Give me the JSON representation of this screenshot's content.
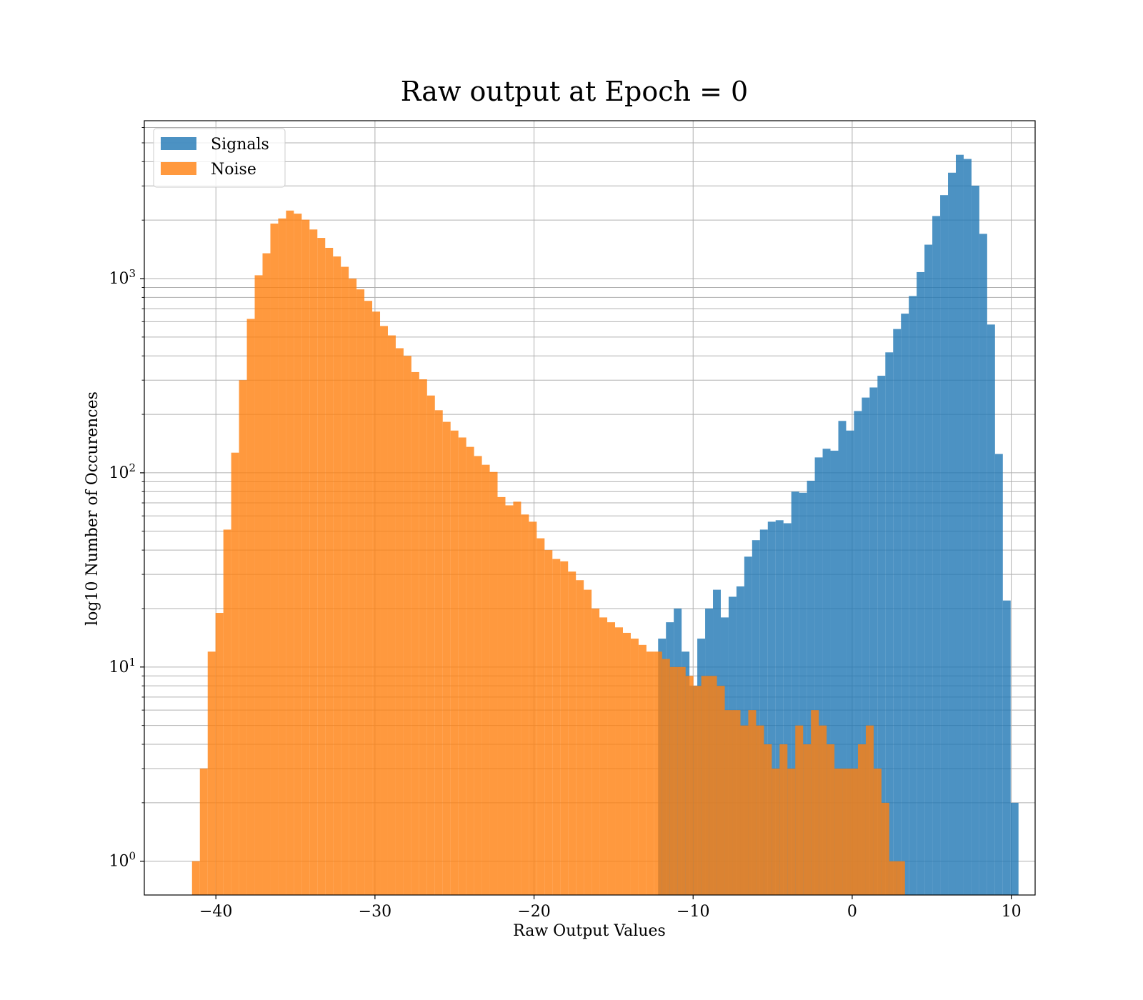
{
  "chart_data": {
    "type": "bar",
    "title": "Raw output at Epoch = 0",
    "xlabel": "Raw Output Values",
    "ylabel": "log10 Number of Occurences",
    "xlim": [
      -44.5,
      11.5
    ],
    "ylim": [
      0.67,
      6500
    ],
    "yscale": "log",
    "grid": true,
    "legend_position": "top-left",
    "x_ticks": [
      -40,
      -30,
      -20,
      -10,
      0,
      10
    ],
    "x_tick_labels": [
      "−40",
      "−30",
      "−20",
      "−10",
      "0",
      "10"
    ],
    "y_ticks": [
      {
        "base": "10",
        "exp": "0",
        "value": 1
      },
      {
        "base": "10",
        "exp": "1",
        "value": 10
      },
      {
        "base": "10",
        "exp": "2",
        "value": 100
      },
      {
        "base": "10",
        "exp": "3",
        "value": 1000
      }
    ],
    "series": [
      {
        "name": "Signals",
        "color": "#1f77b4",
        "alpha": 0.8,
        "bin_start": -12.2,
        "bin_width": 0.4925,
        "counts": [
          14,
          17,
          20,
          12,
          8,
          14,
          20,
          25,
          18,
          23,
          26,
          37,
          45,
          51,
          56,
          57,
          55,
          80,
          79,
          91,
          120,
          133,
          130,
          185,
          165,
          208,
          244,
          275,
          316,
          417,
          550,
          660,
          813,
          1080,
          1495,
          2100,
          2690,
          3510,
          4340,
          4130,
          3010,
          1700,
          580,
          125,
          22,
          2
        ]
      },
      {
        "name": "Noise",
        "color": "#ff7f0e",
        "alpha": 0.8,
        "bin_start": -41.5,
        "bin_width": 0.4925,
        "counts": [
          1,
          3,
          12,
          19,
          51,
          127,
          300,
          620,
          1040,
          1350,
          1920,
          2040,
          2240,
          2160,
          2010,
          1790,
          1620,
          1440,
          1300,
          1150,
          1000,
          880,
          768,
          676,
          570,
          510,
          438,
          400,
          330,
          303,
          250,
          210,
          183,
          165,
          152,
          136,
          122,
          110,
          101,
          75,
          68,
          71,
          61,
          56,
          46,
          40,
          36,
          35,
          31,
          28,
          25,
          20,
          18,
          17,
          16,
          15,
          14,
          13,
          12,
          12,
          11,
          10,
          10,
          9,
          8,
          9,
          9,
          8,
          6,
          6,
          5,
          6,
          5,
          4,
          3,
          4,
          3,
          5,
          4,
          6,
          5,
          4,
          3,
          3,
          3,
          4,
          5,
          3,
          2,
          1,
          1
        ]
      }
    ]
  }
}
